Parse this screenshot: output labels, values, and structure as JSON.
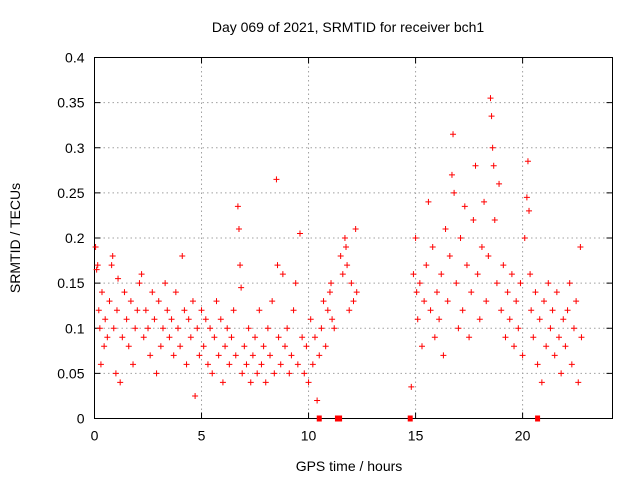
{
  "chart_data": {
    "type": "scatter",
    "title": "Day 069 of 2021, SRMTID for receiver bch1",
    "xlabel": "GPS time / hours",
    "ylabel": "SRMTID / TECUs",
    "xlim": [
      0,
      24.2
    ],
    "ylim": [
      0,
      0.4
    ],
    "x_ticks": [
      "0",
      "5",
      "10",
      "15",
      "20"
    ],
    "y_ticks": [
      "0",
      "0.05",
      "0.1",
      "0.15",
      "0.2",
      "0.25",
      "0.3",
      "0.35",
      "0.4"
    ],
    "grid": true,
    "marker": "+",
    "color": "#ff0000",
    "gap_markers_x": [
      10.5,
      11.35,
      11.45,
      14.75,
      20.7
    ],
    "series": [
      {
        "name": "bch1",
        "points": [
          [
            0.05,
            0.19
          ],
          [
            0.1,
            0.165
          ],
          [
            0.15,
            0.17
          ],
          [
            0.2,
            0.12
          ],
          [
            0.25,
            0.1
          ],
          [
            0.3,
            0.06
          ],
          [
            0.35,
            0.14
          ],
          [
            0.45,
            0.08
          ],
          [
            0.5,
            0.11
          ],
          [
            0.6,
            0.09
          ],
          [
            0.7,
            0.13
          ],
          [
            0.8,
            0.17
          ],
          [
            0.85,
            0.18
          ],
          [
            0.9,
            0.1
          ],
          [
            1.0,
            0.05
          ],
          [
            1.05,
            0.12
          ],
          [
            1.1,
            0.155
          ],
          [
            1.2,
            0.04
          ],
          [
            1.3,
            0.09
          ],
          [
            1.4,
            0.14
          ],
          [
            1.5,
            0.11
          ],
          [
            1.6,
            0.08
          ],
          [
            1.7,
            0.13
          ],
          [
            1.8,
            0.06
          ],
          [
            1.9,
            0.1
          ],
          [
            2.0,
            0.12
          ],
          [
            2.1,
            0.15
          ],
          [
            2.2,
            0.16
          ],
          [
            2.3,
            0.09
          ],
          [
            2.4,
            0.12
          ],
          [
            2.5,
            0.1
          ],
          [
            2.6,
            0.07
          ],
          [
            2.7,
            0.14
          ],
          [
            2.8,
            0.11
          ],
          [
            2.9,
            0.05
          ],
          [
            3.0,
            0.13
          ],
          [
            3.1,
            0.08
          ],
          [
            3.2,
            0.1
          ],
          [
            3.3,
            0.15
          ],
          [
            3.4,
            0.12
          ],
          [
            3.5,
            0.09
          ],
          [
            3.6,
            0.11
          ],
          [
            3.7,
            0.07
          ],
          [
            3.8,
            0.14
          ],
          [
            3.9,
            0.1
          ],
          [
            4.0,
            0.08
          ],
          [
            4.1,
            0.18
          ],
          [
            4.2,
            0.12
          ],
          [
            4.3,
            0.06
          ],
          [
            4.4,
            0.11
          ],
          [
            4.5,
            0.09
          ],
          [
            4.6,
            0.13
          ],
          [
            4.7,
            0.025
          ],
          [
            4.8,
            0.1
          ],
          [
            4.9,
            0.07
          ],
          [
            5.0,
            0.12
          ],
          [
            5.1,
            0.08
          ],
          [
            5.2,
            0.11
          ],
          [
            5.3,
            0.06
          ],
          [
            5.4,
            0.1
          ],
          [
            5.5,
            0.05
          ],
          [
            5.6,
            0.09
          ],
          [
            5.7,
            0.13
          ],
          [
            5.8,
            0.07
          ],
          [
            5.9,
            0.11
          ],
          [
            6.0,
            0.04
          ],
          [
            6.1,
            0.08
          ],
          [
            6.2,
            0.1
          ],
          [
            6.3,
            0.06
          ],
          [
            6.4,
            0.09
          ],
          [
            6.5,
            0.12
          ],
          [
            6.6,
            0.07
          ],
          [
            6.7,
            0.235
          ],
          [
            6.75,
            0.21
          ],
          [
            6.8,
            0.17
          ],
          [
            6.85,
            0.145
          ],
          [
            6.9,
            0.05
          ],
          [
            7.0,
            0.08
          ],
          [
            7.1,
            0.06
          ],
          [
            7.2,
            0.1
          ],
          [
            7.3,
            0.04
          ],
          [
            7.4,
            0.07
          ],
          [
            7.5,
            0.09
          ],
          [
            7.6,
            0.05
          ],
          [
            7.7,
            0.12
          ],
          [
            7.8,
            0.06
          ],
          [
            7.9,
            0.08
          ],
          [
            8.0,
            0.04
          ],
          [
            8.1,
            0.1
          ],
          [
            8.2,
            0.07
          ],
          [
            8.3,
            0.13
          ],
          [
            8.4,
            0.05
          ],
          [
            8.5,
            0.265
          ],
          [
            8.55,
            0.17
          ],
          [
            8.6,
            0.09
          ],
          [
            8.7,
            0.06
          ],
          [
            8.8,
            0.16
          ],
          [
            8.9,
            0.08
          ],
          [
            9.0,
            0.1
          ],
          [
            9.1,
            0.05
          ],
          [
            9.2,
            0.07
          ],
          [
            9.3,
            0.12
          ],
          [
            9.4,
            0.15
          ],
          [
            9.5,
            0.06
          ],
          [
            9.6,
            0.205
          ],
          [
            9.7,
            0.09
          ],
          [
            9.8,
            0.05
          ],
          [
            9.9,
            0.08
          ],
          [
            10.0,
            0.04
          ],
          [
            10.1,
            0.11
          ],
          [
            10.2,
            0.06
          ],
          [
            10.3,
            0.09
          ],
          [
            10.4,
            0.02
          ],
          [
            10.5,
            0.07
          ],
          [
            10.6,
            0.1
          ],
          [
            10.7,
            0.13
          ],
          [
            10.8,
            0.08
          ],
          [
            10.9,
            0.12
          ],
          [
            11.0,
            0.14
          ],
          [
            11.05,
            0.15
          ],
          [
            11.1,
            0.11
          ],
          [
            11.2,
            0.1
          ],
          [
            11.5,
            0.18
          ],
          [
            11.6,
            0.16
          ],
          [
            11.7,
            0.2
          ],
          [
            11.75,
            0.19
          ],
          [
            11.8,
            0.17
          ],
          [
            11.9,
            0.12
          ],
          [
            12.0,
            0.15
          ],
          [
            12.1,
            0.13
          ],
          [
            12.2,
            0.21
          ],
          [
            12.25,
            0.14
          ],
          [
            14.8,
            0.035
          ],
          [
            14.9,
            0.16
          ],
          [
            15.0,
            0.2
          ],
          [
            15.05,
            0.14
          ],
          [
            15.1,
            0.11
          ],
          [
            15.2,
            0.15
          ],
          [
            15.3,
            0.08
          ],
          [
            15.4,
            0.13
          ],
          [
            15.5,
            0.17
          ],
          [
            15.6,
            0.24
          ],
          [
            15.7,
            0.12
          ],
          [
            15.8,
            0.19
          ],
          [
            15.9,
            0.09
          ],
          [
            16.0,
            0.14
          ],
          [
            16.1,
            0.11
          ],
          [
            16.2,
            0.16
          ],
          [
            16.3,
            0.07
          ],
          [
            16.4,
            0.21
          ],
          [
            16.5,
            0.13
          ],
          [
            16.6,
            0.18
          ],
          [
            16.7,
            0.27
          ],
          [
            16.75,
            0.315
          ],
          [
            16.8,
            0.25
          ],
          [
            16.9,
            0.15
          ],
          [
            17.0,
            0.1
          ],
          [
            17.1,
            0.2
          ],
          [
            17.2,
            0.12
          ],
          [
            17.3,
            0.235
          ],
          [
            17.4,
            0.17
          ],
          [
            17.5,
            0.09
          ],
          [
            17.6,
            0.14
          ],
          [
            17.7,
            0.22
          ],
          [
            17.8,
            0.28
          ],
          [
            17.9,
            0.16
          ],
          [
            18.0,
            0.11
          ],
          [
            18.1,
            0.19
          ],
          [
            18.2,
            0.24
          ],
          [
            18.3,
            0.13
          ],
          [
            18.4,
            0.18
          ],
          [
            18.5,
            0.355
          ],
          [
            18.55,
            0.335
          ],
          [
            18.6,
            0.3
          ],
          [
            18.65,
            0.28
          ],
          [
            18.7,
            0.22
          ],
          [
            18.8,
            0.15
          ],
          [
            18.9,
            0.26
          ],
          [
            19.0,
            0.12
          ],
          [
            19.1,
            0.17
          ],
          [
            19.2,
            0.09
          ],
          [
            19.3,
            0.14
          ],
          [
            19.4,
            0.11
          ],
          [
            19.5,
            0.16
          ],
          [
            19.6,
            0.08
          ],
          [
            19.7,
            0.13
          ],
          [
            19.8,
            0.1
          ],
          [
            19.9,
            0.15
          ],
          [
            20.0,
            0.07
          ],
          [
            20.1,
            0.2
          ],
          [
            20.2,
            0.245
          ],
          [
            20.25,
            0.285
          ],
          [
            20.3,
            0.23
          ],
          [
            20.35,
            0.16
          ],
          [
            20.4,
            0.12
          ],
          [
            20.5,
            0.09
          ],
          [
            20.6,
            0.14
          ],
          [
            20.7,
            0.06
          ],
          [
            20.8,
            0.11
          ],
          [
            20.9,
            0.04
          ],
          [
            21.0,
            0.13
          ],
          [
            21.1,
            0.08
          ],
          [
            21.2,
            0.15
          ],
          [
            21.3,
            0.1
          ],
          [
            21.4,
            0.12
          ],
          [
            21.5,
            0.07
          ],
          [
            21.6,
            0.14
          ],
          [
            21.7,
            0.09
          ],
          [
            21.8,
            0.05
          ],
          [
            21.9,
            0.11
          ],
          [
            22.0,
            0.08
          ],
          [
            22.1,
            0.12
          ],
          [
            22.2,
            0.15
          ],
          [
            22.3,
            0.06
          ],
          [
            22.4,
            0.1
          ],
          [
            22.5,
            0.13
          ],
          [
            22.6,
            0.04
          ],
          [
            22.7,
            0.19
          ],
          [
            22.75,
            0.09
          ]
        ]
      }
    ]
  }
}
